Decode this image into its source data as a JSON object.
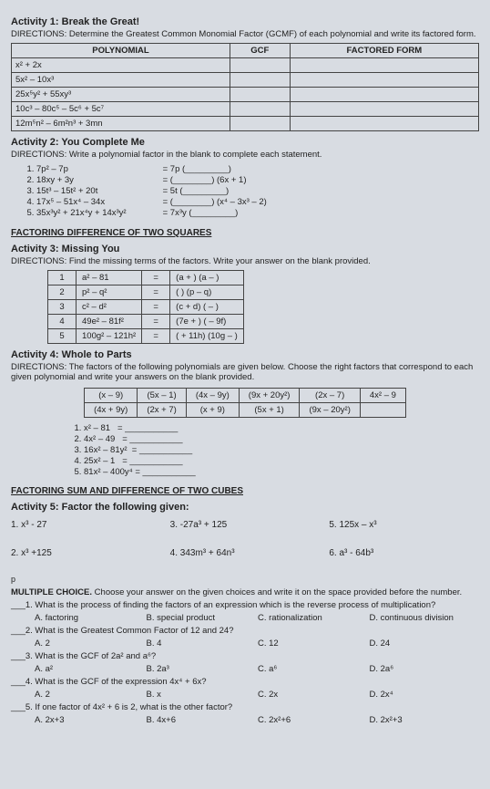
{
  "a1": {
    "title": "Activity 1: Break the Great!",
    "dir": "DIRECTIONS: Determine the Greatest Common Monomial Factor (GCMF) of each polynomial and write its factored form.",
    "headers": [
      "POLYNOMIAL",
      "GCF",
      "FACTORED FORM"
    ],
    "rows": [
      "x² + 2x",
      "5x² – 10x³",
      "25x⁵y² + 55xy³",
      "10c³ – 80c⁵ – 5c⁶ + 5c⁷",
      "12m⁵n² – 6m²n³ + 3mn"
    ]
  },
  "a2": {
    "title": "Activity 2: You Complete Me",
    "dir": "DIRECTIONS: Write a polynomial factor in the blank to complete each statement.",
    "left": [
      "7p² – 7p",
      "18xy + 3y",
      "15t³ – 15t² + 20t",
      "17x⁵ – 51x⁴ – 34x",
      "35x³y² + 21x⁴y + 14x³y²"
    ],
    "right": [
      "= 7p (_________)",
      "= (________) (6x + 1)",
      "= 5t (_________)",
      "= (________) (x⁴ – 3x³ – 2)",
      "= 7x³y (_________)"
    ]
  },
  "sec1": "FACTORING DIFFERENCE OF TWO SQUARES",
  "a3": {
    "title": "Activity 3: Missing You",
    "dir": "DIRECTIONS: Find the missing terms of the factors. Write your answer on the blank provided.",
    "rows": [
      [
        "1",
        "a² – 81",
        "=",
        "(a +   ) (a –   )"
      ],
      [
        "2",
        "p² – q²",
        "=",
        "(      ) (p – q)"
      ],
      [
        "3",
        "c² – d²",
        "=",
        "(c + d) (   –   )"
      ],
      [
        "4",
        "49e² – 81f²",
        "=",
        "(7e +   ) (   – 9f)"
      ],
      [
        "5",
        "100g² – 121h²",
        "=",
        "(   + 11h) (10g –   )"
      ]
    ]
  },
  "a4": {
    "title": "Activity 4: Whole to Parts",
    "dir": "DIRECTIONS: The factors of the following polynomials are given below. Choose the right factors that correspond to each given polynomial and write your answers on the blank provided.",
    "choices": [
      [
        "(x – 9)",
        "(5x – 1)",
        "(4x – 9y)",
        "(9x + 20y²)",
        "(2x – 7)",
        "4x² – 9"
      ],
      [
        "(4x + 9y)",
        "(2x + 7)",
        "(x + 9)",
        "(5x + 1)",
        "(9x – 20y²)",
        ""
      ]
    ],
    "items": [
      "x² – 81",
      "4x² – 49",
      "16x² – 81y²",
      "25x² – 1",
      "81x² – 400y⁴"
    ]
  },
  "sec2": "FACTORING SUM AND DIFFERENCE OF TWO CUBES",
  "a5": {
    "title": "Activity 5: Factor the following given:",
    "items": [
      "1. x³ - 27",
      "3. -27a³ + 125",
      "5. 125x – x³",
      "2. x³ +125",
      "4. 343m³ + 64n³",
      "6. a³ - 64b³"
    ]
  },
  "mc": {
    "title": "MULTIPLE CHOICE.",
    "dir": "Choose your answer on the given choices and write it on the space provided before the number.",
    "q": [
      {
        "n": "___1.",
        "t": "What is the process of finding the factors of an expression which is the reverse process of multiplication?",
        "o": [
          "A. factoring",
          "B. special product",
          "C. rationalization",
          "D. continuous division"
        ]
      },
      {
        "n": "___2.",
        "t": "What is the Greatest Common Factor of 12 and 24?",
        "o": [
          "A. 2",
          "B. 4",
          "C. 12",
          "D. 24"
        ]
      },
      {
        "n": "___3.",
        "t": "What is the GCF of 2a² and a⁶?",
        "o": [
          "A. a²",
          "B. 2a³",
          "C. a⁶",
          "D. 2a⁶"
        ]
      },
      {
        "n": "___4.",
        "t": "What is the GCF of the expression 4x⁴ + 6x?",
        "o": [
          "A. 2",
          "B. x",
          "C. 2x",
          "D. 2x⁴"
        ]
      },
      {
        "n": "___5.",
        "t": "If one factor of 4x² + 6 is 2, what is the other factor?",
        "o": [
          "A. 2x+3",
          "B. 4x+6",
          "C. 2x²+6",
          "D. 2x²+3"
        ]
      }
    ]
  },
  "p": "p"
}
